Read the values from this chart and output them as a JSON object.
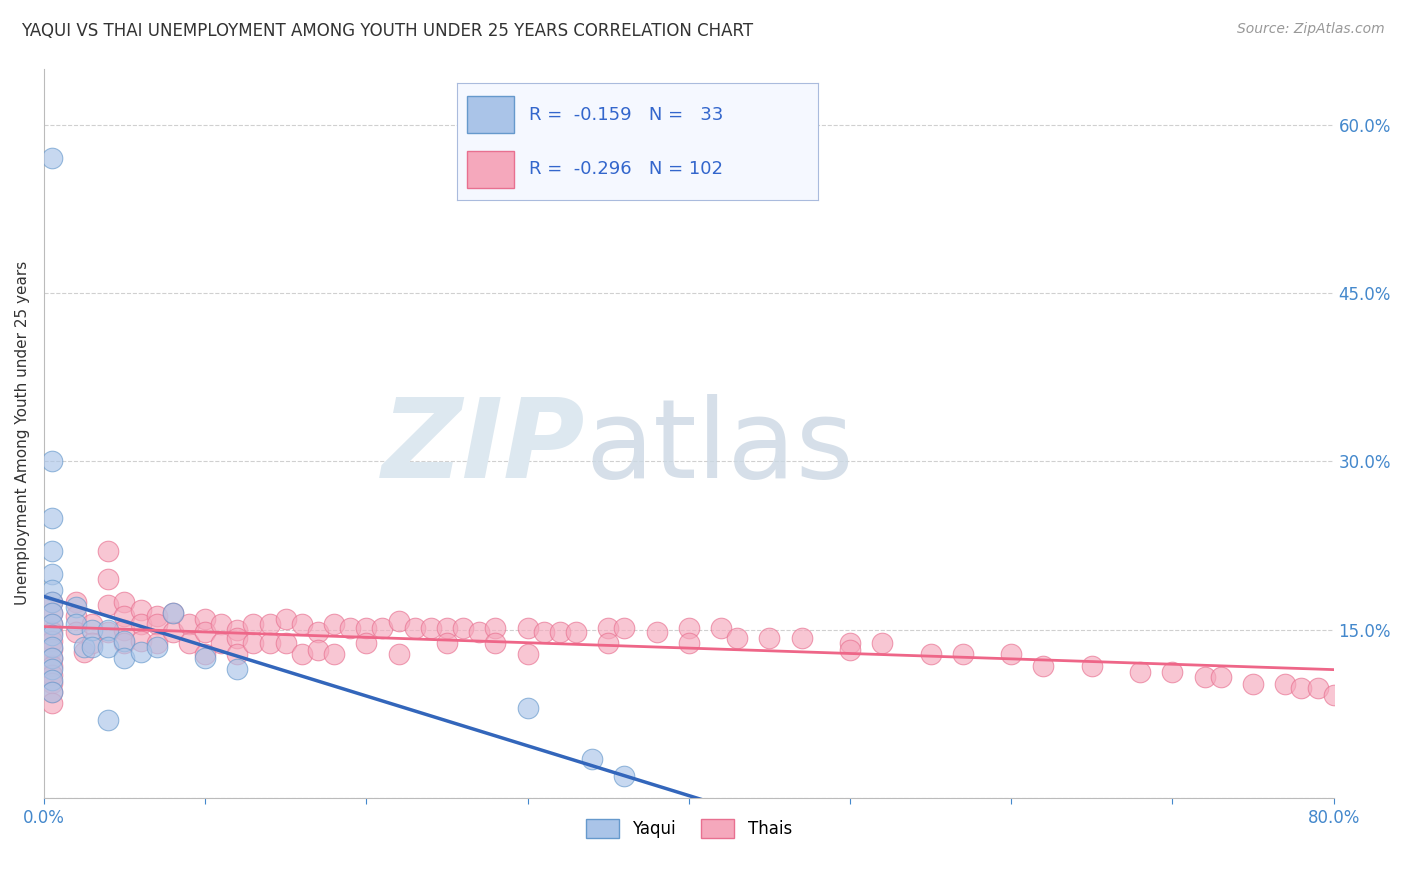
{
  "title": "YAQUI VS THAI UNEMPLOYMENT AMONG YOUTH UNDER 25 YEARS CORRELATION CHART",
  "source": "Source: ZipAtlas.com",
  "ylabel": "Unemployment Among Youth under 25 years",
  "xlim": [
    0.0,
    0.8
  ],
  "ylim": [
    0.0,
    0.65
  ],
  "xticks": [
    0.0,
    0.1,
    0.2,
    0.3,
    0.4,
    0.5,
    0.6,
    0.7,
    0.8
  ],
  "xticklabels": [
    "0.0%",
    "",
    "",
    "",
    "",
    "",
    "",
    "",
    "80.0%"
  ],
  "ytick_positions": [
    0.0,
    0.15,
    0.3,
    0.45,
    0.6
  ],
  "ytick_labels": [
    "",
    "15.0%",
    "30.0%",
    "45.0%",
    "60.0%"
  ],
  "background_color": "#ffffff",
  "grid_color": "#d0d0d0",
  "yaqui_color": "#aac4e8",
  "thais_color": "#f5a8bc",
  "yaqui_edge_color": "#6699cc",
  "thais_edge_color": "#e87090",
  "yaqui_line_color": "#3366bb",
  "thais_line_color": "#ee6688",
  "R_yaqui": -0.159,
  "N_yaqui": 33,
  "R_thais": -0.296,
  "N_thais": 102,
  "yaqui_scatter_x": [
    0.005,
    0.005,
    0.005,
    0.005,
    0.005,
    0.005,
    0.005,
    0.005,
    0.005,
    0.005,
    0.005,
    0.005,
    0.005,
    0.005,
    0.005,
    0.02,
    0.02,
    0.025,
    0.03,
    0.03,
    0.04,
    0.04,
    0.04,
    0.05,
    0.05,
    0.06,
    0.07,
    0.08,
    0.1,
    0.12,
    0.3,
    0.34,
    0.36
  ],
  "yaqui_scatter_y": [
    0.57,
    0.3,
    0.25,
    0.22,
    0.2,
    0.185,
    0.175,
    0.165,
    0.155,
    0.145,
    0.135,
    0.125,
    0.115,
    0.105,
    0.095,
    0.17,
    0.155,
    0.135,
    0.15,
    0.135,
    0.15,
    0.135,
    0.07,
    0.14,
    0.125,
    0.13,
    0.135,
    0.165,
    0.125,
    0.115,
    0.08,
    0.035,
    0.02
  ],
  "thais_scatter_x": [
    0.005,
    0.005,
    0.005,
    0.005,
    0.005,
    0.005,
    0.005,
    0.005,
    0.005,
    0.005,
    0.005,
    0.005,
    0.02,
    0.02,
    0.02,
    0.025,
    0.03,
    0.03,
    0.04,
    0.04,
    0.04,
    0.04,
    0.05,
    0.05,
    0.05,
    0.05,
    0.06,
    0.06,
    0.06,
    0.07,
    0.07,
    0.07,
    0.08,
    0.08,
    0.09,
    0.09,
    0.1,
    0.1,
    0.1,
    0.11,
    0.11,
    0.12,
    0.12,
    0.12,
    0.13,
    0.13,
    0.14,
    0.14,
    0.15,
    0.15,
    0.16,
    0.16,
    0.17,
    0.17,
    0.18,
    0.18,
    0.19,
    0.2,
    0.2,
    0.21,
    0.22,
    0.22,
    0.23,
    0.24,
    0.25,
    0.25,
    0.26,
    0.27,
    0.28,
    0.28,
    0.3,
    0.3,
    0.31,
    0.32,
    0.33,
    0.35,
    0.35,
    0.36,
    0.38,
    0.4,
    0.4,
    0.42,
    0.43,
    0.45,
    0.47,
    0.5,
    0.5,
    0.52,
    0.55,
    0.57,
    0.6,
    0.62,
    0.65,
    0.68,
    0.7,
    0.72,
    0.73,
    0.75,
    0.77,
    0.78,
    0.79,
    0.8
  ],
  "thais_scatter_y": [
    0.175,
    0.165,
    0.155,
    0.148,
    0.14,
    0.133,
    0.125,
    0.118,
    0.11,
    0.103,
    0.095,
    0.085,
    0.175,
    0.162,
    0.148,
    0.13,
    0.155,
    0.138,
    0.22,
    0.195,
    0.172,
    0.148,
    0.175,
    0.162,
    0.15,
    0.138,
    0.168,
    0.155,
    0.14,
    0.162,
    0.155,
    0.138,
    0.165,
    0.148,
    0.155,
    0.138,
    0.16,
    0.148,
    0.128,
    0.155,
    0.138,
    0.15,
    0.143,
    0.128,
    0.155,
    0.138,
    0.155,
    0.138,
    0.16,
    0.138,
    0.155,
    0.128,
    0.148,
    0.132,
    0.155,
    0.128,
    0.152,
    0.152,
    0.138,
    0.152,
    0.158,
    0.128,
    0.152,
    0.152,
    0.152,
    0.138,
    0.152,
    0.148,
    0.152,
    0.138,
    0.152,
    0.128,
    0.148,
    0.148,
    0.148,
    0.152,
    0.138,
    0.152,
    0.148,
    0.152,
    0.138,
    0.152,
    0.143,
    0.143,
    0.143,
    0.138,
    0.132,
    0.138,
    0.128,
    0.128,
    0.128,
    0.118,
    0.118,
    0.112,
    0.112,
    0.108,
    0.108,
    0.102,
    0.102,
    0.098,
    0.098,
    0.092
  ]
}
